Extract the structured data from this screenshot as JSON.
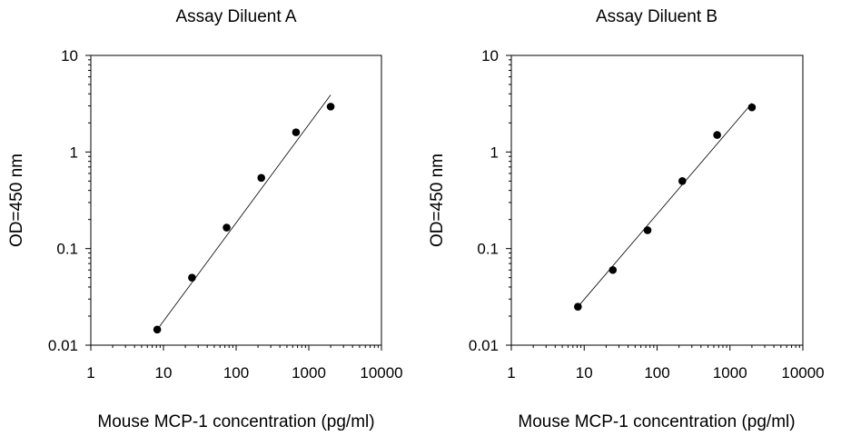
{
  "chart_data": [
    {
      "type": "scatter",
      "title": "Assay Diluent A",
      "xlabel": "Mouse MCP-1 concentration (pg/ml)",
      "ylabel": "OD=450 nm",
      "xscale": "log",
      "yscale": "log",
      "xlim": [
        1,
        10000
      ],
      "ylim": [
        0.01,
        10
      ],
      "xticks": [
        "1",
        "10",
        "100",
        "1000",
        "10000"
      ],
      "yticks": [
        "0.01",
        "0.1",
        "1",
        "10"
      ],
      "grid": false,
      "series": [
        {
          "points": {
            "x": [
              8.2,
              24.7,
              74,
              222,
              667,
              2000
            ],
            "y": [
              0.0145,
              0.05,
              0.165,
              0.54,
              1.6,
              2.95
            ]
          }
        }
      ],
      "fit_line": {
        "x": [
          8.2,
          2000
        ],
        "y": [
          0.0145,
          3.9
        ]
      }
    },
    {
      "type": "scatter",
      "title": "Assay Diluent B",
      "xlabel": "Mouse MCP-1 concentration (pg/ml)",
      "ylabel": "OD=450 nm",
      "xscale": "log",
      "yscale": "log",
      "xlim": [
        1,
        10000
      ],
      "ylim": [
        0.01,
        10
      ],
      "xticks": [
        "1",
        "10",
        "100",
        "1000",
        "10000"
      ],
      "yticks": [
        "0.01",
        "0.1",
        "1",
        "10"
      ],
      "grid": false,
      "series": [
        {
          "points": {
            "x": [
              8.2,
              24.7,
              74,
              222,
              667,
              2000
            ],
            "y": [
              0.025,
              0.06,
              0.155,
              0.5,
              1.5,
              2.9
            ]
          }
        }
      ],
      "fit_line": {
        "x": [
          8.2,
          2000
        ],
        "y": [
          0.025,
          3.2
        ]
      }
    }
  ]
}
